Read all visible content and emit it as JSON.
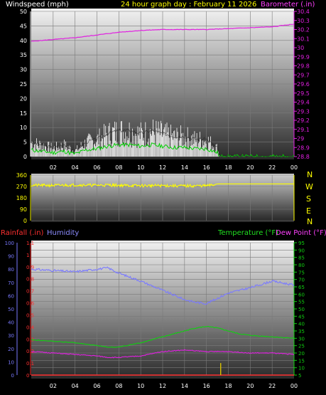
{
  "header": {
    "left_label": "Windspeed (mph)",
    "title": "24 hour graph day : February 11 2026",
    "right_label": "Barometer (.in)"
  },
  "colors": {
    "background": "#000000",
    "wind_gust": "#ffffff",
    "wind_avg": "#00d000",
    "barometer": "#e020e0",
    "direction": "#ffff00",
    "humidity": "#7a7aff",
    "temperature": "#10d010",
    "dewpoint": "#e020e0",
    "rainfall": "#ff3030",
    "rain_bar": "#d8c000",
    "grid": "#7a7a7a"
  },
  "wind_panel": {
    "compass_labels": [
      "N",
      "W",
      "S",
      "E",
      "N"
    ]
  },
  "bottom_panel": {
    "rain_label": "Rainfall (.in)",
    "humidity_label": "Humidity",
    "temp_label": "Temperature (°F)",
    "dew_label": "Dew Point (°F)"
  },
  "chart_data": [
    {
      "type": "line",
      "name": "wind-barometer",
      "x_ticks": [
        "02",
        "04",
        "06",
        "08",
        "10",
        "12",
        "14",
        "16",
        "18",
        "20",
        "22",
        "00"
      ],
      "y_left_ticks": [
        0,
        5,
        10,
        15,
        20,
        25,
        30,
        35,
        40,
        45,
        50
      ],
      "y_left_range": [
        0,
        50
      ],
      "y_right_ticks": [
        28.8,
        28.9,
        29.0,
        29.1,
        29.2,
        29.3,
        29.4,
        29.5,
        29.6,
        29.7,
        29.8,
        29.9,
        30.0,
        30.1,
        30.2,
        30.3,
        30.4
      ],
      "y_right_range": [
        28.8,
        30.4
      ],
      "y_right_labels": [
        "28.8",
        "28.9",
        "29",
        "29.1",
        "29.2",
        "29.3",
        "29.4",
        "29.5",
        "29.6",
        "29.7",
        "29.8",
        "29.9",
        "30",
        "30.1",
        "30.2",
        "30.3",
        "30.4"
      ],
      "series": [
        {
          "name": "Windspeed (mph)",
          "axis": "left",
          "x": [
            0,
            1,
            2,
            3,
            4,
            5,
            6,
            7,
            8,
            9,
            10,
            11,
            12,
            13,
            14,
            15,
            16,
            17,
            17.2,
            17.5,
            24
          ],
          "values": [
            5,
            4,
            3,
            4,
            2,
            5,
            6,
            8,
            9,
            9,
            8,
            9,
            8,
            7,
            7,
            6,
            6,
            3,
            0,
            0,
            0
          ]
        },
        {
          "name": "Barometer (.in)",
          "axis": "right",
          "x": [
            0,
            2,
            4,
            6,
            8,
            10,
            12,
            14,
            16,
            18,
            20,
            22,
            24
          ],
          "values": [
            30.07,
            30.09,
            30.11,
            30.14,
            30.17,
            30.19,
            30.2,
            30.2,
            30.2,
            30.21,
            30.22,
            30.23,
            30.26
          ]
        }
      ]
    },
    {
      "type": "line",
      "name": "wind-direction",
      "y_ticks": [
        0,
        90,
        180,
        270,
        360
      ],
      "y_range": [
        0,
        360
      ],
      "x": [
        0,
        2,
        4,
        6,
        6.5,
        7,
        8,
        10,
        12,
        14,
        16,
        16.5,
        17,
        18,
        20,
        22,
        24
      ],
      "values": [
        280,
        278,
        282,
        280,
        280,
        282,
        279,
        276,
        277,
        274,
        276,
        280,
        290,
        290,
        290,
        290,
        290
      ]
    },
    {
      "type": "line",
      "name": "humidity-temperature",
      "x_ticks": [
        "02",
        "04",
        "06",
        "08",
        "10",
        "12",
        "14",
        "16",
        "18",
        "20",
        "22",
        "00"
      ],
      "humidity_ticks": [
        0,
        10,
        20,
        30,
        40,
        50,
        60,
        70,
        80,
        90,
        100
      ],
      "humidity_range": [
        0,
        100
      ],
      "rain_ticks": [
        0,
        0.1,
        0.2,
        0.3,
        0.4,
        0.5,
        0.6,
        0.7,
        0.8,
        0.9,
        1,
        1.1
      ],
      "rain_labels": [
        "0",
        "0.1",
        "0.2",
        "0.3",
        "0.4",
        "0.5",
        "0.6",
        "0.7",
        "0.8",
        "0.9",
        "1",
        "1.1"
      ],
      "rain_range": [
        0,
        1.1
      ],
      "temp_ticks": [
        5,
        10,
        15,
        20,
        25,
        30,
        35,
        40,
        45,
        50,
        55,
        60,
        65,
        70,
        75,
        80,
        85,
        90,
        95
      ],
      "temp_range": [
        5,
        95
      ],
      "series": [
        {
          "name": "Humidity",
          "axis": "humidity",
          "x": [
            0,
            2,
            4,
            6,
            7,
            8,
            10,
            12,
            14,
            15,
            16,
            18,
            19,
            20,
            22,
            24
          ],
          "values": [
            80,
            79,
            78,
            80,
            81,
            77,
            71,
            64,
            57,
            55,
            54,
            62,
            64,
            66,
            71,
            68
          ]
        },
        {
          "name": "Temperature (°F)",
          "axis": "temp",
          "x": [
            0,
            2,
            4,
            6,
            7,
            8,
            10,
            12,
            14,
            15,
            16,
            17,
            18,
            19,
            20,
            22,
            24
          ],
          "values": [
            29,
            28,
            27,
            25,
            24,
            24,
            27,
            31,
            35,
            37,
            38,
            37,
            35,
            33,
            32,
            31,
            30
          ]
        },
        {
          "name": "Dew Point (°F)",
          "axis": "temp",
          "x": [
            0,
            2,
            4,
            6,
            7,
            8,
            10,
            12,
            14,
            16,
            18,
            20,
            22,
            24
          ],
          "values": [
            21,
            20,
            19,
            18,
            17,
            17,
            18,
            21,
            22,
            21,
            21,
            20,
            20,
            19
          ]
        },
        {
          "name": "Rainfall (.in)",
          "axis": "rain",
          "x": [
            0,
            24
          ],
          "values": [
            0,
            0
          ]
        }
      ],
      "rain_bars": [
        {
          "x": 17.3,
          "value": 0.1
        }
      ]
    }
  ]
}
